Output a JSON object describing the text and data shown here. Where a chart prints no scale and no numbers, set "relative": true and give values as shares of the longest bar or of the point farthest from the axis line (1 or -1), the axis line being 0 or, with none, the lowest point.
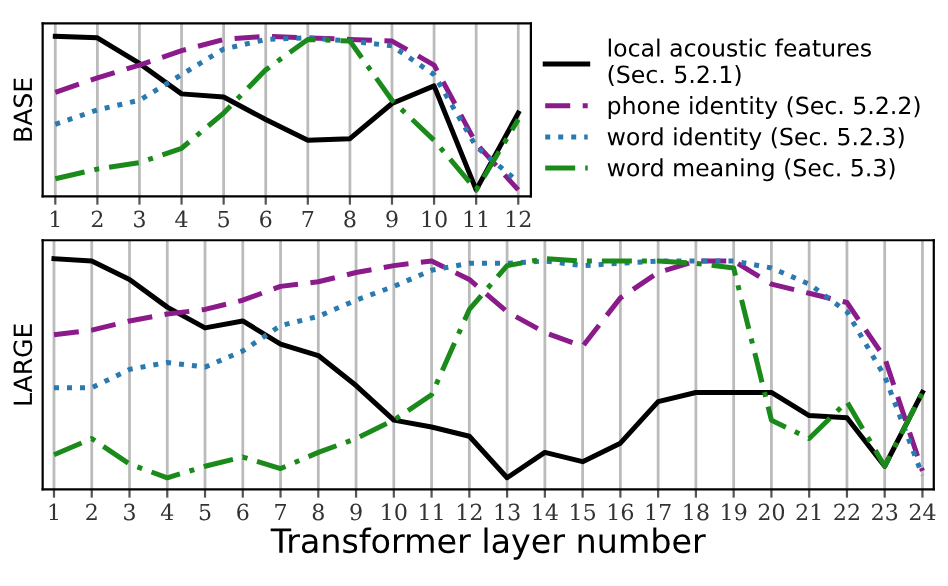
{
  "chart_data": [
    {
      "type": "line",
      "ylabel": "BASE",
      "relative": true,
      "grid": "x",
      "legend": "right",
      "categories": [
        "1",
        "2",
        "3",
        "4",
        "5",
        "6",
        "7",
        "8",
        "9",
        "10",
        "11",
        "12"
      ],
      "series": [
        {
          "name": "local acoustic features\n(Sec. 5.2.1)",
          "color": "#000000",
          "line_style": "solid",
          "values": [
            1.0,
            0.99,
            0.83,
            0.64,
            0.62,
            0.48,
            0.35,
            0.36,
            0.58,
            0.69,
            0.04,
            0.52
          ]
        },
        {
          "name": "phone identity (Sec. 5.2.2)",
          "color": "#8b1a8b",
          "line_style": "dashed",
          "values": [
            0.65,
            0.74,
            0.82,
            0.91,
            0.98,
            1.0,
            0.99,
            0.98,
            0.97,
            0.82,
            0.33,
            0.04
          ]
        },
        {
          "name": "word identity (Sec. 5.2.3)",
          "color": "#2a7ab0",
          "line_style": "dotted",
          "values": [
            0.45,
            0.54,
            0.6,
            0.76,
            0.92,
            0.98,
            0.99,
            0.97,
            0.94,
            0.76,
            0.31,
            0.09
          ]
        },
        {
          "name": "word meaning (Sec. 5.3)",
          "color": "#1a8a1a",
          "line_style": "dashdot",
          "values": [
            0.11,
            0.17,
            0.21,
            0.3,
            0.52,
            0.79,
            0.98,
            0.97,
            0.6,
            0.35,
            0.04,
            0.48
          ]
        }
      ]
    },
    {
      "type": "line",
      "ylabel": "LARGE",
      "xlabel": "Transformer layer number",
      "relative": true,
      "grid": "x",
      "categories": [
        "1",
        "2",
        "3",
        "4",
        "5",
        "6",
        "7",
        "8",
        "9",
        "10",
        "11",
        "12",
        "13",
        "14",
        "15",
        "16",
        "17",
        "18",
        "19",
        "20",
        "21",
        "22",
        "23",
        "24"
      ],
      "series": [
        {
          "color": "#000000",
          "line_style": "solid",
          "values": [
            1.0,
            0.99,
            0.91,
            0.79,
            0.7,
            0.73,
            0.63,
            0.58,
            0.45,
            0.3,
            0.27,
            0.23,
            0.05,
            0.16,
            0.12,
            0.2,
            0.38,
            0.42,
            0.42,
            0.42,
            0.32,
            0.31,
            0.1,
            0.42
          ]
        },
        {
          "color": "#8b1a8b",
          "line_style": "dashed",
          "values": [
            0.67,
            0.69,
            0.73,
            0.76,
            0.78,
            0.82,
            0.88,
            0.9,
            0.94,
            0.97,
            0.99,
            0.91,
            0.77,
            0.68,
            0.62,
            0.83,
            0.94,
            0.99,
            0.99,
            0.89,
            0.85,
            0.81,
            0.57,
            0.08
          ]
        },
        {
          "color": "#2a7ab0",
          "line_style": "dotted",
          "values": [
            0.44,
            0.44,
            0.52,
            0.55,
            0.53,
            0.6,
            0.71,
            0.75,
            0.82,
            0.88,
            0.95,
            0.98,
            0.98,
            0.99,
            0.97,
            0.98,
            0.99,
            0.99,
            0.99,
            0.96,
            0.89,
            0.77,
            0.49,
            0.06
          ]
        },
        {
          "color": "#1a8a1a",
          "line_style": "dashdot",
          "values": [
            0.15,
            0.22,
            0.11,
            0.05,
            0.1,
            0.14,
            0.09,
            0.16,
            0.22,
            0.3,
            0.41,
            0.78,
            0.97,
            1.0,
            0.99,
            0.99,
            0.99,
            0.98,
            0.96,
            0.3,
            0.22,
            0.38,
            0.1,
            0.42
          ]
        }
      ]
    }
  ]
}
